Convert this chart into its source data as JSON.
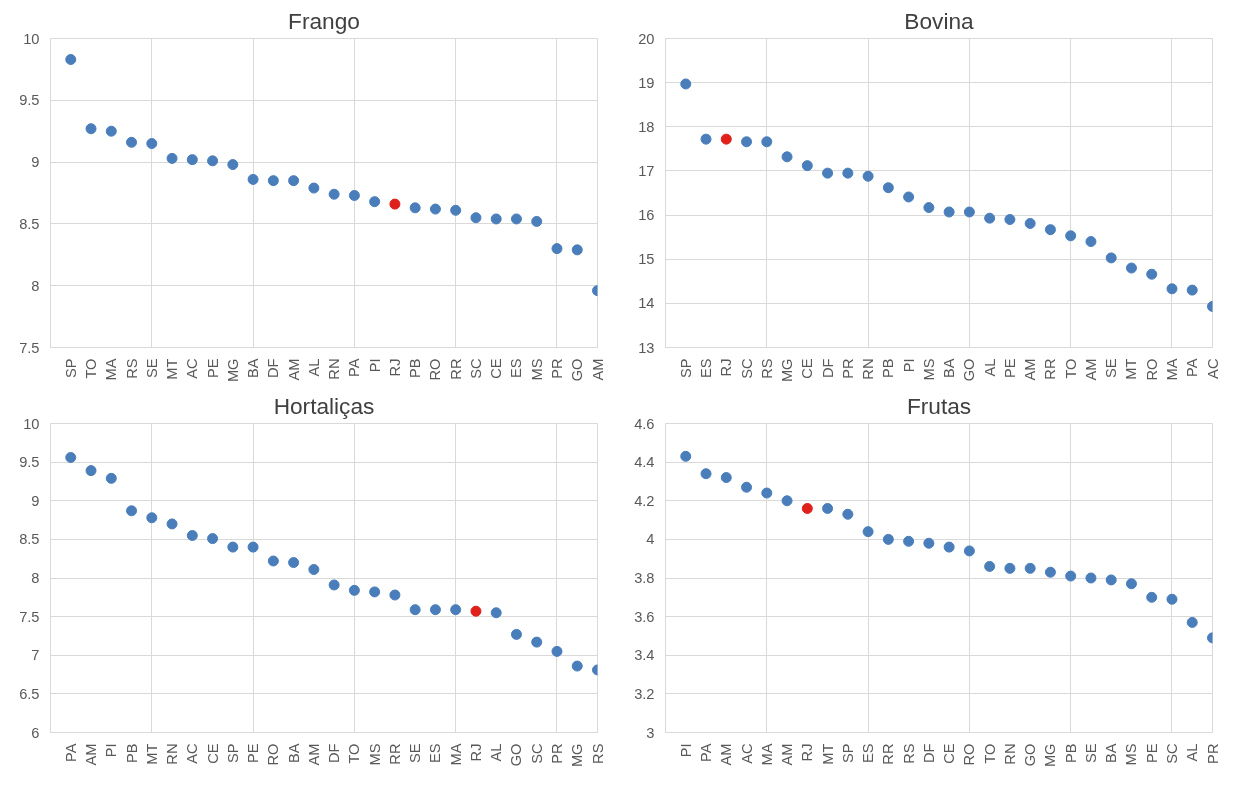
{
  "chart_data": [
    {
      "type": "scatter",
      "title": "Frango",
      "marker": "circle",
      "grid": true,
      "categories": [
        "SP",
        "TO",
        "MA",
        "RS",
        "SE",
        "MT",
        "AC",
        "PE",
        "MG",
        "BA",
        "DF",
        "AM",
        "AL",
        "RN",
        "PA",
        "PI",
        "RJ",
        "PB",
        "RO",
        "RR",
        "SC",
        "CE",
        "ES",
        "MS",
        "PR",
        "GO",
        "AM"
      ],
      "values": [
        9.83,
        9.27,
        9.25,
        9.16,
        9.15,
        9.03,
        9.02,
        9.01,
        8.98,
        8.86,
        8.85,
        8.85,
        8.79,
        8.74,
        8.73,
        8.68,
        8.66,
        8.63,
        8.62,
        8.61,
        8.55,
        8.54,
        8.54,
        8.52,
        8.3,
        8.29,
        7.96
      ],
      "colors": [
        "#4a7ebb",
        "#4a7ebb",
        "#4a7ebb",
        "#4a7ebb",
        "#4a7ebb",
        "#4a7ebb",
        "#4a7ebb",
        "#4a7ebb",
        "#4a7ebb",
        "#4a7ebb",
        "#4a7ebb",
        "#4a7ebb",
        "#4a7ebb",
        "#4a7ebb",
        "#4a7ebb",
        "#4a7ebb",
        "#e0201b",
        "#4a7ebb",
        "#4a7ebb",
        "#4a7ebb",
        "#4a7ebb",
        "#4a7ebb",
        "#4a7ebb",
        "#4a7ebb",
        "#4a7ebb",
        "#4a7ebb",
        "#4a7ebb"
      ],
      "ylim": [
        7.5,
        10
      ],
      "yticks": [
        7.5,
        8,
        8.5,
        9,
        9.5,
        10
      ]
    },
    {
      "type": "scatter",
      "title": "Bovina",
      "marker": "circle",
      "grid": true,
      "categories": [
        "SP",
        "ES",
        "RJ",
        "SC",
        "RS",
        "MG",
        "CE",
        "DF",
        "PR",
        "RN",
        "PB",
        "PI",
        "MS",
        "BA",
        "GO",
        "AL",
        "PE",
        "AM",
        "RR",
        "TO",
        "AM",
        "SE",
        "MT",
        "RO",
        "MA",
        "PA",
        "AC"
      ],
      "values": [
        18.97,
        17.72,
        17.72,
        17.66,
        17.66,
        17.32,
        17.12,
        16.95,
        16.95,
        16.88,
        16.62,
        16.41,
        16.17,
        16.07,
        16.07,
        15.93,
        15.9,
        15.81,
        15.67,
        15.53,
        15.4,
        15.03,
        14.8,
        14.66,
        14.33,
        14.3,
        13.93
      ],
      "colors": [
        "#4a7ebb",
        "#4a7ebb",
        "#e0201b",
        "#4a7ebb",
        "#4a7ebb",
        "#4a7ebb",
        "#4a7ebb",
        "#4a7ebb",
        "#4a7ebb",
        "#4a7ebb",
        "#4a7ebb",
        "#4a7ebb",
        "#4a7ebb",
        "#4a7ebb",
        "#4a7ebb",
        "#4a7ebb",
        "#4a7ebb",
        "#4a7ebb",
        "#4a7ebb",
        "#4a7ebb",
        "#4a7ebb",
        "#4a7ebb",
        "#4a7ebb",
        "#4a7ebb",
        "#4a7ebb",
        "#4a7ebb",
        "#4a7ebb"
      ],
      "ylim": [
        13,
        20
      ],
      "yticks": [
        13,
        14,
        15,
        16,
        17,
        18,
        19,
        20
      ]
    },
    {
      "type": "scatter",
      "title": "Hortaliças",
      "marker": "circle",
      "grid": true,
      "categories": [
        "PA",
        "AM",
        "PI",
        "PB",
        "MT",
        "RN",
        "AC",
        "CE",
        "SP",
        "PE",
        "RO",
        "BA",
        "AM",
        "DF",
        "TO",
        "MS",
        "RR",
        "SE",
        "ES",
        "MA",
        "RJ",
        "AL",
        "GO",
        "SC",
        "PR",
        "MG",
        "RS"
      ],
      "values": [
        9.56,
        9.39,
        9.29,
        8.87,
        8.78,
        8.7,
        8.55,
        8.51,
        8.4,
        8.4,
        8.22,
        8.2,
        8.11,
        7.91,
        7.84,
        7.82,
        7.78,
        7.59,
        7.59,
        7.59,
        7.57,
        7.55,
        7.27,
        7.17,
        7.05,
        6.86,
        6.81
      ],
      "colors": [
        "#4a7ebb",
        "#4a7ebb",
        "#4a7ebb",
        "#4a7ebb",
        "#4a7ebb",
        "#4a7ebb",
        "#4a7ebb",
        "#4a7ebb",
        "#4a7ebb",
        "#4a7ebb",
        "#4a7ebb",
        "#4a7ebb",
        "#4a7ebb",
        "#4a7ebb",
        "#4a7ebb",
        "#4a7ebb",
        "#4a7ebb",
        "#4a7ebb",
        "#4a7ebb",
        "#4a7ebb",
        "#e0201b",
        "#4a7ebb",
        "#4a7ebb",
        "#4a7ebb",
        "#4a7ebb",
        "#4a7ebb",
        "#4a7ebb"
      ],
      "ylim": [
        6,
        10
      ],
      "yticks": [
        6,
        6.5,
        7,
        7.5,
        8,
        8.5,
        9,
        9.5,
        10
      ]
    },
    {
      "type": "scatter",
      "title": "Frutas",
      "marker": "circle",
      "grid": true,
      "categories": [
        "PI",
        "PA",
        "AM",
        "AC",
        "MA",
        "AM",
        "RJ",
        "MT",
        "SP",
        "ES",
        "RR",
        "RS",
        "DF",
        "CE",
        "RO",
        "TO",
        "RN",
        "GO",
        "MG",
        "PB",
        "SE",
        "BA",
        "MS",
        "PE",
        "SC",
        "AL",
        "PR"
      ],
      "values": [
        4.43,
        4.34,
        4.32,
        4.27,
        4.24,
        4.2,
        4.16,
        4.16,
        4.13,
        4.04,
        4.0,
        3.99,
        3.98,
        3.96,
        3.94,
        3.86,
        3.85,
        3.85,
        3.83,
        3.81,
        3.8,
        3.79,
        3.77,
        3.7,
        3.69,
        3.57,
        3.49
      ],
      "colors": [
        "#4a7ebb",
        "#4a7ebb",
        "#4a7ebb",
        "#4a7ebb",
        "#4a7ebb",
        "#4a7ebb",
        "#e0201b",
        "#4a7ebb",
        "#4a7ebb",
        "#4a7ebb",
        "#4a7ebb",
        "#4a7ebb",
        "#4a7ebb",
        "#4a7ebb",
        "#4a7ebb",
        "#4a7ebb",
        "#4a7ebb",
        "#4a7ebb",
        "#4a7ebb",
        "#4a7ebb",
        "#4a7ebb",
        "#4a7ebb",
        "#4a7ebb",
        "#4a7ebb",
        "#4a7ebb",
        "#4a7ebb",
        "#4a7ebb"
      ],
      "ylim": [
        3,
        4.6
      ],
      "yticks": [
        3,
        3.2,
        3.4,
        3.6,
        3.8,
        4,
        4.2,
        4.4,
        4.6
      ]
    }
  ]
}
